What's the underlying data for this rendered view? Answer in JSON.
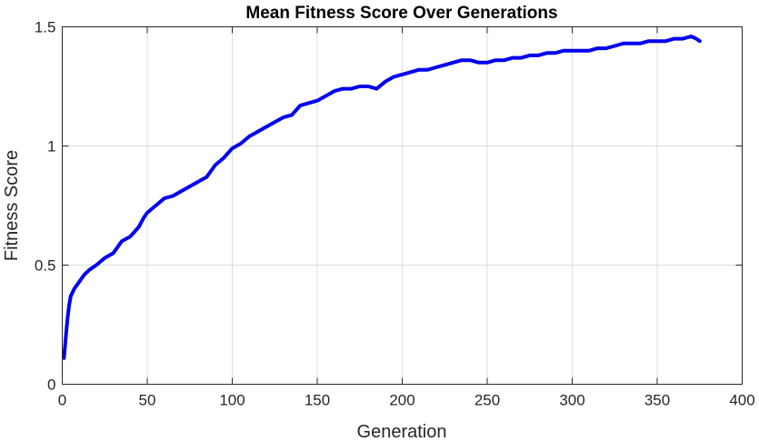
{
  "chart_data": {
    "type": "line",
    "title": "Mean Fitness Score Over Generations",
    "xlabel": "Generation",
    "ylabel": "Fitness Score",
    "xlim": [
      0,
      400
    ],
    "ylim": [
      0,
      1.5
    ],
    "xticks": [
      0,
      50,
      100,
      150,
      200,
      250,
      300,
      350,
      400
    ],
    "yticks": [
      0,
      0.5,
      1,
      1.5
    ],
    "xtick_labels": [
      "0",
      "50",
      "100",
      "150",
      "200",
      "250",
      "300",
      "350",
      "400"
    ],
    "ytick_labels": [
      "0",
      "0.5",
      "1",
      "1.5"
    ],
    "grid": true,
    "legend": "none",
    "series": [
      {
        "color": "#0000ee",
        "x": [
          1,
          2,
          3,
          4,
          5,
          7,
          10,
          13,
          16,
          20,
          25,
          30,
          35,
          40,
          45,
          48,
          50,
          55,
          60,
          65,
          70,
          75,
          80,
          85,
          90,
          95,
          100,
          105,
          110,
          115,
          120,
          125,
          130,
          135,
          140,
          145,
          150,
          155,
          160,
          165,
          170,
          175,
          180,
          185,
          190,
          195,
          200,
          205,
          210,
          215,
          220,
          225,
          230,
          235,
          240,
          245,
          250,
          255,
          260,
          265,
          270,
          275,
          280,
          285,
          290,
          295,
          300,
          305,
          310,
          315,
          320,
          325,
          330,
          335,
          340,
          345,
          350,
          355,
          360,
          365,
          370,
          373,
          375
        ],
        "y": [
          0.11,
          0.19,
          0.27,
          0.33,
          0.37,
          0.4,
          0.43,
          0.46,
          0.48,
          0.5,
          0.53,
          0.55,
          0.6,
          0.62,
          0.66,
          0.7,
          0.72,
          0.75,
          0.78,
          0.79,
          0.81,
          0.83,
          0.85,
          0.87,
          0.92,
          0.95,
          0.99,
          1.01,
          1.04,
          1.06,
          1.08,
          1.1,
          1.12,
          1.13,
          1.17,
          1.18,
          1.19,
          1.21,
          1.23,
          1.24,
          1.24,
          1.25,
          1.25,
          1.24,
          1.27,
          1.29,
          1.3,
          1.31,
          1.32,
          1.32,
          1.33,
          1.34,
          1.35,
          1.36,
          1.36,
          1.35,
          1.35,
          1.36,
          1.36,
          1.37,
          1.37,
          1.38,
          1.38,
          1.39,
          1.39,
          1.4,
          1.4,
          1.4,
          1.4,
          1.41,
          1.41,
          1.42,
          1.43,
          1.43,
          1.43,
          1.44,
          1.44,
          1.44,
          1.45,
          1.45,
          1.46,
          1.45,
          1.44
        ]
      }
    ]
  }
}
